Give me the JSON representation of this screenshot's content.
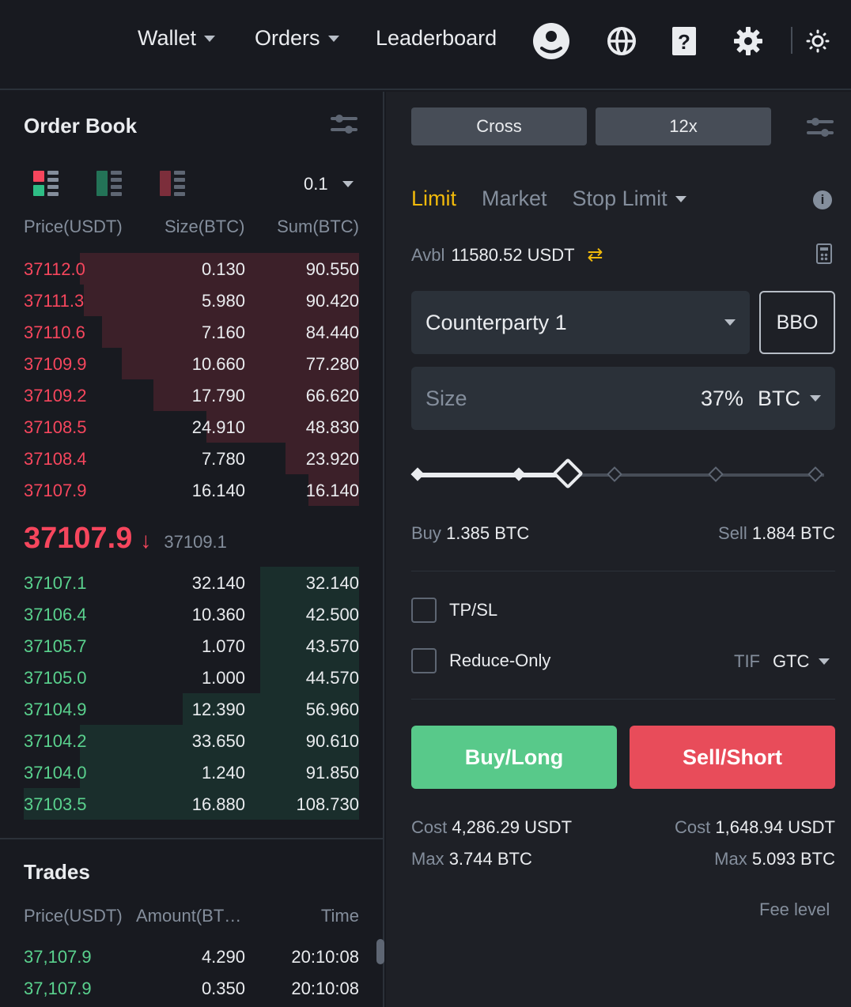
{
  "nav": {
    "wallet": "Wallet",
    "orders": "Orders",
    "leaderboard": "Leaderboard"
  },
  "colors": {
    "ask": "#f6465d",
    "bid": "#2ebd85",
    "accent": "#f0b90b"
  },
  "orderbook": {
    "title": "Order Book",
    "precision": "0.1",
    "headers": {
      "price": "Price(USDT)",
      "size": "Size(BTC)",
      "sum": "Sum(BTC)"
    },
    "asks": [
      {
        "price": "37112.0",
        "size": "0.130",
        "sum": "90.550",
        "depth": 0.833
      },
      {
        "price": "37111.3",
        "size": "5.980",
        "sum": "90.420",
        "depth": 0.821
      },
      {
        "price": "37110.6",
        "size": "7.160",
        "sum": "84.440",
        "depth": 0.767
      },
      {
        "price": "37109.9",
        "size": "10.660",
        "sum": "77.280",
        "depth": 0.707
      },
      {
        "price": "37109.2",
        "size": "17.790",
        "sum": "66.620",
        "depth": 0.613
      },
      {
        "price": "37108.5",
        "size": "24.910",
        "sum": "48.830",
        "depth": 0.455
      },
      {
        "price": "37108.4",
        "size": "7.780",
        "sum": "23.920",
        "depth": 0.219
      },
      {
        "price": "37107.9",
        "size": "16.140",
        "sum": "16.140",
        "depth": 0.15
      }
    ],
    "last_price": "37107.9",
    "mark_price": "37109.1",
    "bids": [
      {
        "price": "37107.1",
        "size": "32.140",
        "sum": "32.140",
        "depth": 0.295
      },
      {
        "price": "37106.4",
        "size": "10.360",
        "sum": "42.500",
        "depth": 0.295
      },
      {
        "price": "37105.7",
        "size": "1.070",
        "sum": "43.570",
        "depth": 0.295
      },
      {
        "price": "37105.0",
        "size": "1.000",
        "sum": "44.570",
        "depth": 0.295
      },
      {
        "price": "37104.9",
        "size": "12.390",
        "sum": "56.960",
        "depth": 0.526
      },
      {
        "price": "37104.2",
        "size": "33.650",
        "sum": "90.610",
        "depth": 0.833
      },
      {
        "price": "37104.0",
        "size": "1.240",
        "sum": "91.850",
        "depth": 0.833
      },
      {
        "price": "37103.5",
        "size": "16.880",
        "sum": "108.730",
        "depth": 1.0
      }
    ]
  },
  "trades": {
    "title": "Trades",
    "headers": {
      "price": "Price(USDT)",
      "amount": "Amount(BT…",
      "time": "Time"
    },
    "rows": [
      {
        "price": "37,107.9",
        "amount": "4.290",
        "time": "20:10:08"
      },
      {
        "price": "37,107.9",
        "amount": "0.350",
        "time": "20:10:08"
      }
    ]
  },
  "order_form": {
    "margin_mode": "Cross",
    "leverage": "12x",
    "tabs": {
      "limit": "Limit",
      "market": "Market",
      "stop_limit": "Stop Limit"
    },
    "avbl_label": "Avbl",
    "avbl_value": "11580.52 USDT",
    "counterparty": "Counterparty 1",
    "bbo": "BBO",
    "size_placeholder": "Size",
    "size_percent": "37%",
    "size_unit": "BTC",
    "slider_fraction": 0.37,
    "buy_label": "Buy",
    "buy_value": "1.385 BTC",
    "sell_label": "Sell",
    "sell_value": "1.884 BTC",
    "tpsl": "TP/SL",
    "reduce_only": "Reduce-Only",
    "tif_label": "TIF",
    "tif_value": "GTC",
    "buy_button": "Buy/Long",
    "sell_button": "Sell/Short",
    "cost_label": "Cost",
    "max_label": "Max",
    "buy_cost": "4,286.29 USDT",
    "buy_max": "3.744 BTC",
    "sell_cost": "1,648.94 USDT",
    "sell_max": "5.093 BTC",
    "fee_level": "Fee level"
  }
}
